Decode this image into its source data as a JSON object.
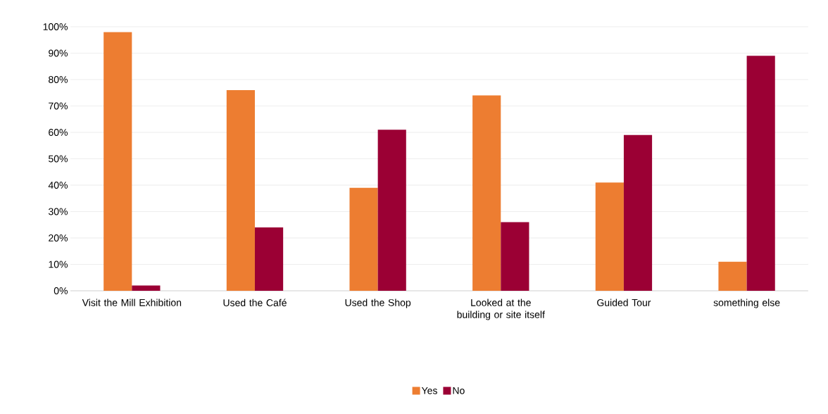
{
  "chart_data": {
    "type": "bar",
    "categories": [
      "Visit the Mill Exhibition",
      "Used the Café",
      "Used the Shop",
      "Looked at the building or site itself",
      "Guided Tour",
      "something else"
    ],
    "series": [
      {
        "name": "Yes",
        "color": "#ed7d31",
        "values": [
          98,
          76,
          39,
          74,
          41,
          11
        ]
      },
      {
        "name": "No",
        "color": "#9b0034",
        "values": [
          2,
          24,
          61,
          26,
          59,
          89
        ]
      }
    ],
    "ylim": [
      0,
      100
    ],
    "yticks": [
      {
        "value": 0,
        "label": "0%"
      },
      {
        "value": 10,
        "label": "10%"
      },
      {
        "value": 20,
        "label": "20%"
      },
      {
        "value": 30,
        "label": "30%"
      },
      {
        "value": 40,
        "label": "40%"
      },
      {
        "value": 50,
        "label": "50%"
      },
      {
        "value": 60,
        "label": "60%"
      },
      {
        "value": 70,
        "label": "70%"
      },
      {
        "value": 80,
        "label": "80%"
      },
      {
        "value": 90,
        "label": "90%"
      },
      {
        "value": 100,
        "label": "100%"
      }
    ],
    "grid": "y",
    "legend": "bottom"
  }
}
